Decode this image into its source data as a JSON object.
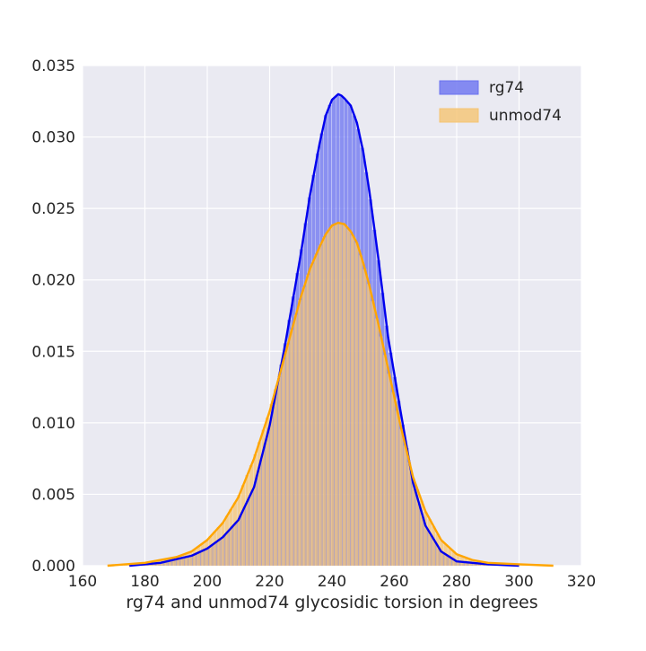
{
  "chart_data": {
    "type": "histogram",
    "title": "",
    "xlabel": "rg74 and unmod74 glycosidic torsion in degrees",
    "ylabel": "",
    "xlim": [
      160,
      320
    ],
    "ylim": [
      0,
      0.035
    ],
    "x_ticks": [
      "160",
      "180",
      "200",
      "220",
      "240",
      "260",
      "280",
      "300",
      "320"
    ],
    "y_ticks": [
      "0.000",
      "0.005",
      "0.010",
      "0.015",
      "0.020",
      "0.025",
      "0.030",
      "0.035"
    ],
    "grid": true,
    "legend_position": "top-right",
    "series": [
      {
        "name": "rg74",
        "color": "#0000ee",
        "fill": "#6a72f0",
        "kde": {
          "x": [
            175,
            185,
            195,
            200,
            205,
            210,
            215,
            220,
            225,
            230,
            233,
            236,
            238,
            240,
            242,
            243,
            244,
            246,
            248,
            250,
            252,
            255,
            258,
            262,
            266,
            270,
            275,
            280,
            290,
            300
          ],
          "y": [
            0.0,
            0.0002,
            0.0007,
            0.0012,
            0.002,
            0.0032,
            0.0055,
            0.0098,
            0.0155,
            0.0218,
            0.026,
            0.0295,
            0.0315,
            0.0326,
            0.033,
            0.0329,
            0.0327,
            0.0322,
            0.031,
            0.029,
            0.0262,
            0.0213,
            0.016,
            0.0108,
            0.0058,
            0.0028,
            0.001,
            0.0003,
            0.0001,
            0.0
          ]
        }
      },
      {
        "name": "unmod74",
        "color": "#ffa500",
        "fill": "#f5c472",
        "kde": {
          "x": [
            168,
            180,
            190,
            195,
            200,
            205,
            210,
            215,
            220,
            225,
            228,
            230,
            233,
            236,
            238,
            240,
            242,
            244,
            246,
            248,
            250,
            252,
            255,
            258,
            262,
            266,
            270,
            275,
            280,
            285,
            290,
            300,
            311
          ],
          "y": [
            0.0,
            0.0002,
            0.0006,
            0.001,
            0.0018,
            0.003,
            0.0048,
            0.0075,
            0.0108,
            0.0148,
            0.0172,
            0.0188,
            0.0208,
            0.0223,
            0.0232,
            0.0238,
            0.024,
            0.0239,
            0.0234,
            0.0226,
            0.0212,
            0.0196,
            0.0168,
            0.0138,
            0.0098,
            0.0062,
            0.0038,
            0.0018,
            0.0008,
            0.0004,
            0.0002,
            0.0001,
            0.0
          ]
        }
      }
    ]
  }
}
